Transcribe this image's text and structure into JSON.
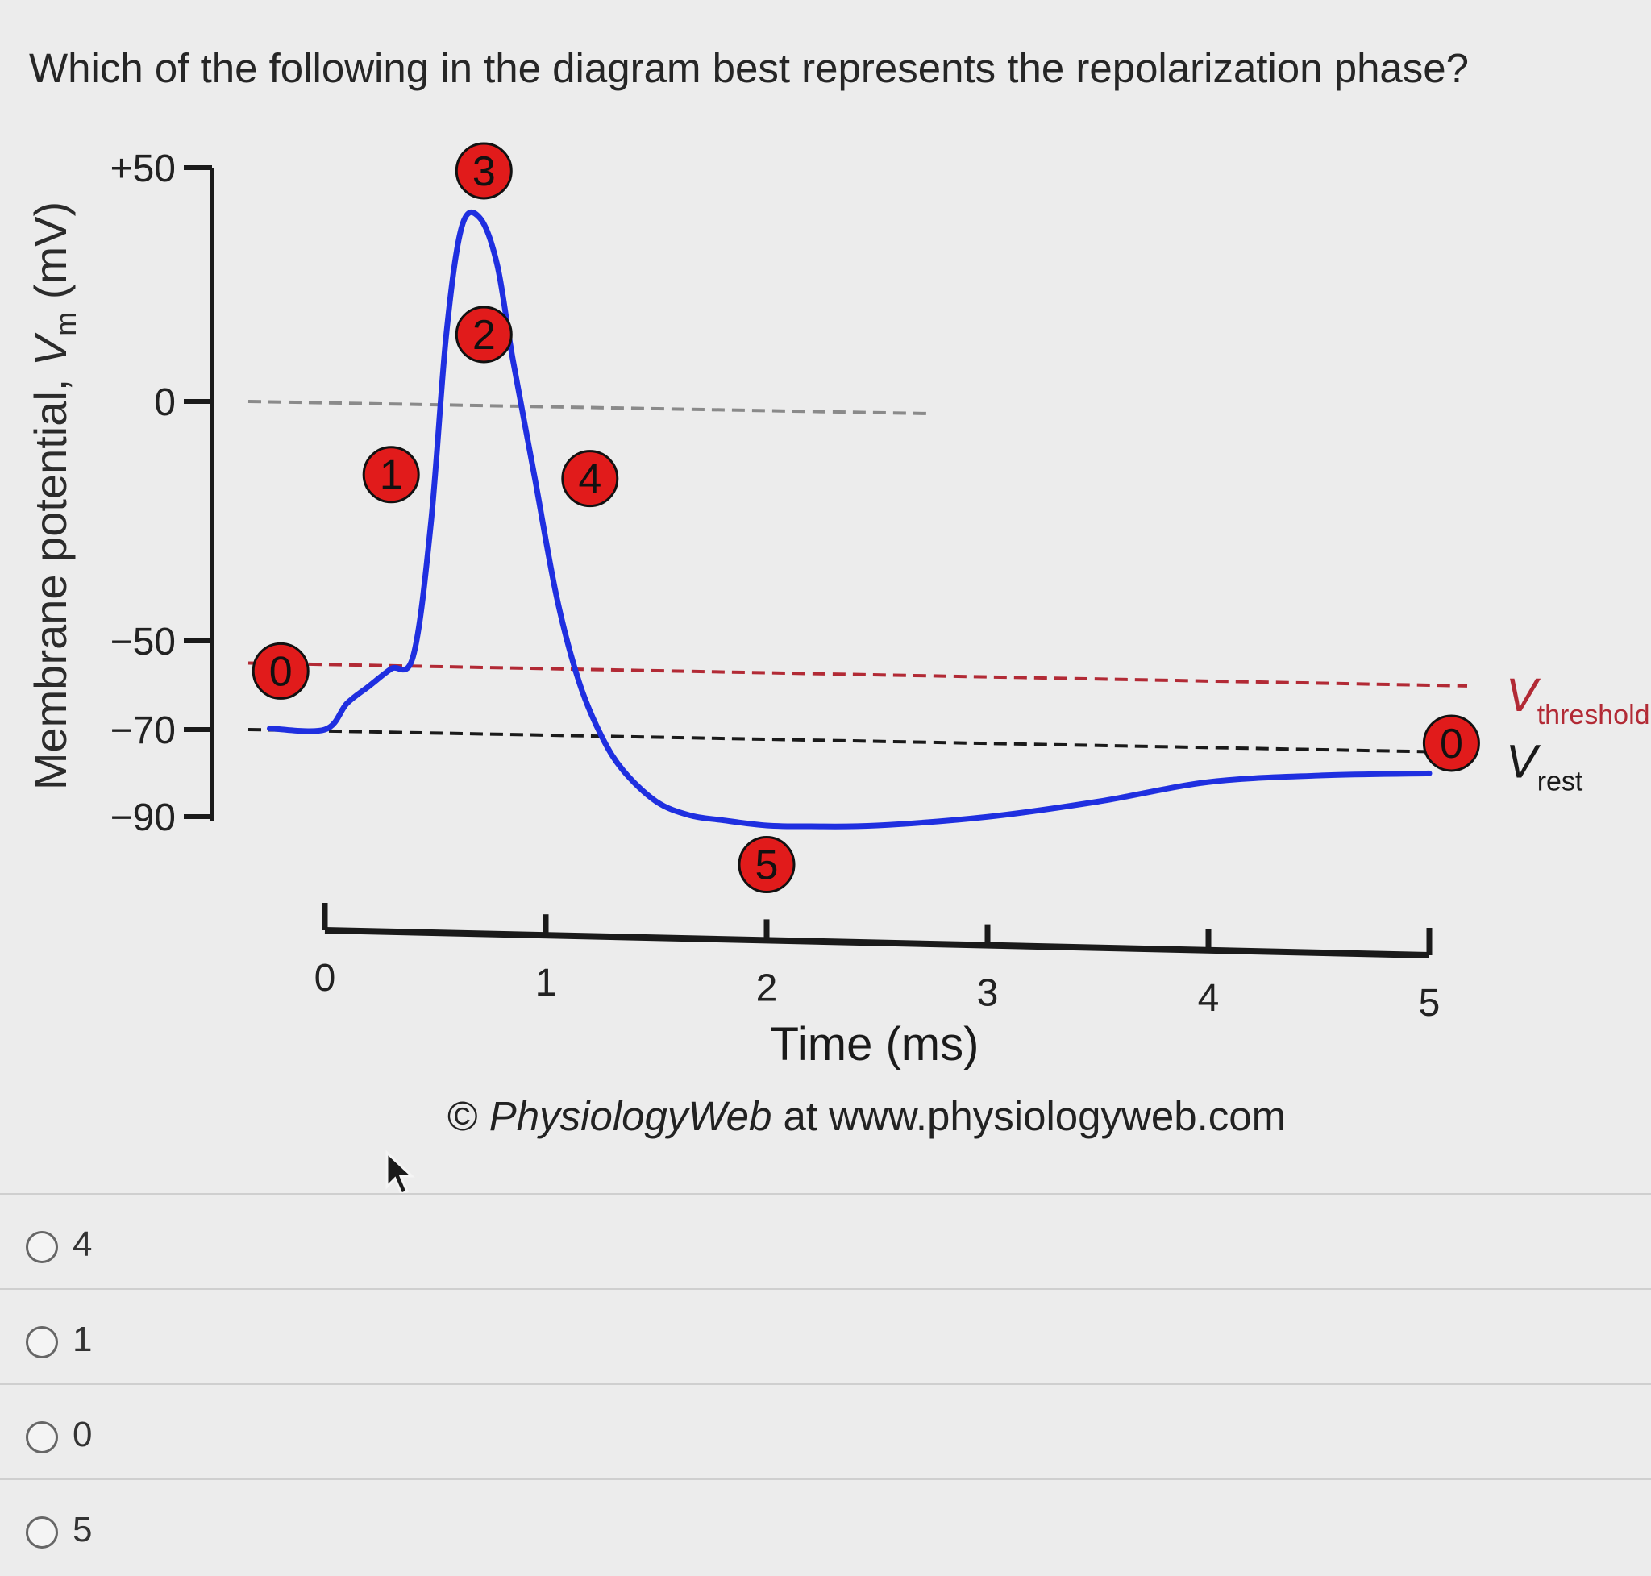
{
  "question": {
    "text": "Which of the following in the diagram best represents the repolarization phase?"
  },
  "chart_data": {
    "type": "line",
    "ylabel_main": "Membrane potential, ",
    "ylabel_var": "V",
    "ylabel_sub": "m",
    "ylabel_unit": " (mV)",
    "xlabel": "Time (ms)",
    "yticks": [
      {
        "value": 50,
        "label": "+50"
      },
      {
        "value": 0,
        "label": "0"
      },
      {
        "value": -50,
        "label": "−50"
      },
      {
        "value": -70,
        "label": "−70"
      },
      {
        "value": -90,
        "label": "−90"
      }
    ],
    "xticks": [
      "0",
      "1",
      "2",
      "3",
      "4",
      "5"
    ],
    "ylim": [
      -90,
      50
    ],
    "xlim": [
      0,
      5
    ],
    "series": [
      {
        "color": "#1f2fe0",
        "x": [
          -0.25,
          0,
          0.1,
          0.2,
          0.3,
          0.4,
          0.48,
          0.55,
          0.62,
          0.7,
          0.78,
          0.85,
          0.95,
          1.05,
          1.15,
          1.25,
          1.35,
          1.5,
          1.65,
          1.8,
          2.0,
          2.2,
          2.5,
          3.0,
          3.5,
          4.0,
          4.5,
          5.0
        ],
        "y": [
          -70,
          -70,
          -64,
          -60,
          -56,
          -53,
          -25,
          15,
          38,
          40,
          30,
          10,
          -15,
          -40,
          -58,
          -70,
          -78,
          -85,
          -88,
          -89,
          -90,
          -90,
          -89.5,
          -87,
          -83,
          -78,
          -76,
          -75
        ]
      }
    ],
    "reference_lines": [
      {
        "name": "zero",
        "value": 0,
        "color": "#8a8a8a"
      },
      {
        "name": "V_threshold",
        "value": -55,
        "color": "#b22a35",
        "label_main": "V",
        "label_sub": "threshold"
      },
      {
        "name": "V_rest",
        "value": -70,
        "color": "#1a1a1a",
        "label_main": "V",
        "label_sub": "rest"
      }
    ],
    "phase_markers": [
      {
        "label": "0",
        "x": -0.2,
        "y": -57
      },
      {
        "label": "1",
        "x": 0.3,
        "y": -15
      },
      {
        "label": "2",
        "x": 0.72,
        "y": 15
      },
      {
        "label": "3",
        "x": 0.72,
        "y": 50
      },
      {
        "label": "4",
        "x": 1.2,
        "y": -15
      },
      {
        "label": "5",
        "x": 2.0,
        "y": -99
      },
      {
        "label": "0",
        "x": 5.1,
        "y": -68
      }
    ],
    "marker_color": "#e11b1b"
  },
  "credit": {
    "symbol": "© ",
    "brand": "PhysiologyWeb",
    "rest": " at www.physiologyweb.com"
  },
  "options": [
    {
      "label": "4"
    },
    {
      "label": "1"
    },
    {
      "label": "0"
    },
    {
      "label": "5"
    }
  ]
}
